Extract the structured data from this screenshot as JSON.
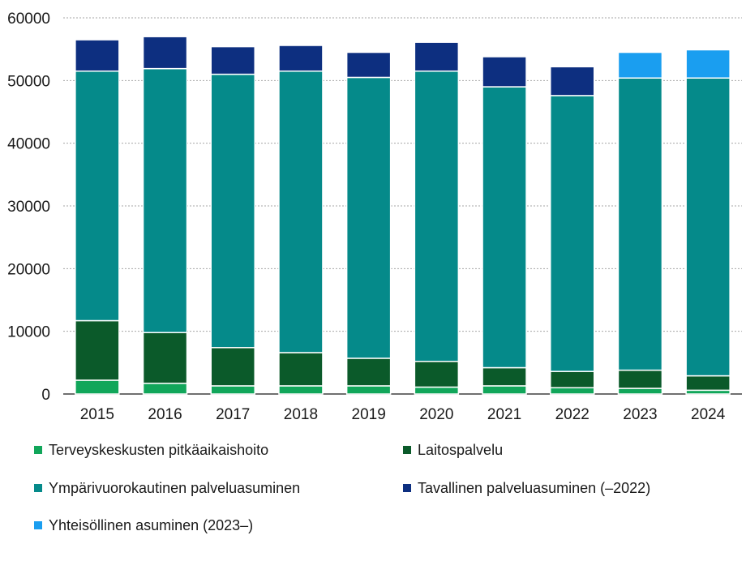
{
  "chart_data": {
    "type": "bar",
    "stacked": true,
    "title": "",
    "xlabel": "",
    "ylabel": "",
    "ylim": [
      0,
      60000
    ],
    "yticks": [
      0,
      10000,
      20000,
      30000,
      40000,
      50000,
      60000
    ],
    "grid": true,
    "legend_position": "bottom",
    "categories": [
      "2015",
      "2016",
      "2017",
      "2018",
      "2019",
      "2020",
      "2021",
      "2022",
      "2023",
      "2024"
    ],
    "series": [
      {
        "name": "Terveyskeskusten pitkäaikaishoito",
        "color": "#11a65a",
        "values": [
          2200,
          1700,
          1300,
          1300,
          1300,
          1100,
          1300,
          1000,
          900,
          600
        ]
      },
      {
        "name": "Laitospalvelu",
        "color": "#0b5a2a",
        "values": [
          9500,
          8100,
          6100,
          5300,
          4400,
          4100,
          2900,
          2600,
          2900,
          2300
        ]
      },
      {
        "name": "Ympärivuorokautinen palveluasuminen",
        "color": "#058a8a",
        "values": [
          39800,
          42100,
          43600,
          44900,
          44800,
          46300,
          44800,
          44000,
          46600,
          47500
        ]
      },
      {
        "name": "Tavallinen palveluasuminen (–2022)",
        "color": "#0d2f80",
        "values": [
          5000,
          5100,
          4400,
          4100,
          4000,
          4600,
          4800,
          4600,
          0,
          0
        ]
      },
      {
        "name": "Yhteisöllinen asuminen (2023–)",
        "color": "#1a9ef0",
        "values": [
          0,
          0,
          0,
          0,
          0,
          0,
          0,
          0,
          4100,
          4500
        ]
      }
    ]
  }
}
